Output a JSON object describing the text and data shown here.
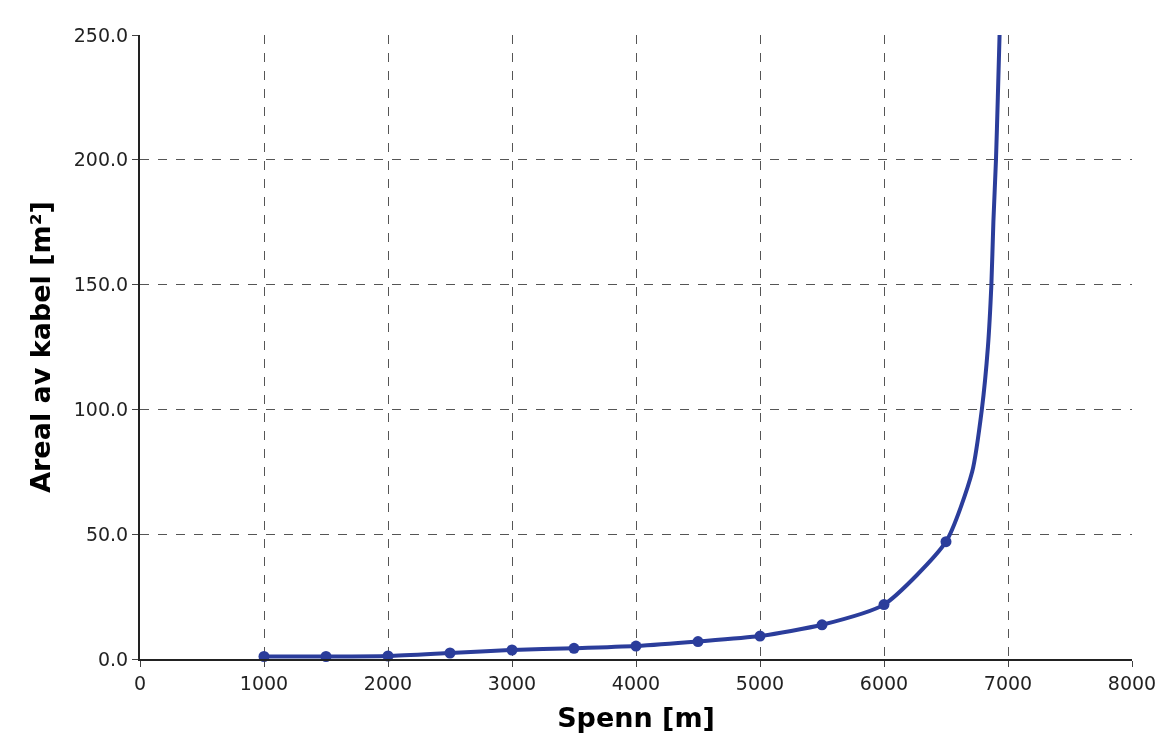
{
  "chart_data": {
    "type": "line",
    "xlabel": "Spenn [m]",
    "ylabel": "Areal av kabel [m²]",
    "xlim": [
      0,
      8000
    ],
    "xticks": [
      0,
      1000,
      2000,
      3000,
      4000,
      5000,
      6000,
      7000,
      8000
    ],
    "ylim": [
      0,
      250
    ],
    "yticks": [
      {
        "value": 0,
        "label": "0.0"
      },
      {
        "value": 50,
        "label": "50.0"
      },
      {
        "value": 100,
        "label": "100.0"
      },
      {
        "value": 150,
        "label": "150.0"
      },
      {
        "value": 200,
        "label": "200.0"
      },
      {
        "value": 250,
        "label": "250.0"
      }
    ],
    "grid": true,
    "series": [
      {
        "marker": "none",
        "line_style": "solid",
        "color": "#2b3d9b",
        "x": [
          1000,
          1500,
          2000,
          2500,
          3000,
          3500,
          4000,
          4500,
          5000,
          5500,
          6000,
          6500,
          6711,
          6789,
          6838,
          6866,
          6882,
          6903,
          6918,
          6932
        ],
        "values": [
          1,
          1,
          1.2,
          2.4,
          3.6,
          4.3,
          5.2,
          7,
          9.2,
          13.7,
          21.8,
          47,
          75,
          100,
          125,
          150,
          175,
          200,
          225,
          250
        ]
      },
      {
        "type": "scatter",
        "marker": "circle",
        "color": "#2b3d9b",
        "x": [
          1000,
          1500,
          2000,
          2500,
          3000,
          3500,
          4000,
          4500,
          5000,
          5500,
          6000,
          6500
        ],
        "values": [
          1,
          1,
          1.2,
          2.4,
          3.6,
          4.3,
          5.2,
          7,
          9.2,
          13.7,
          21.8,
          47
        ]
      }
    ]
  }
}
